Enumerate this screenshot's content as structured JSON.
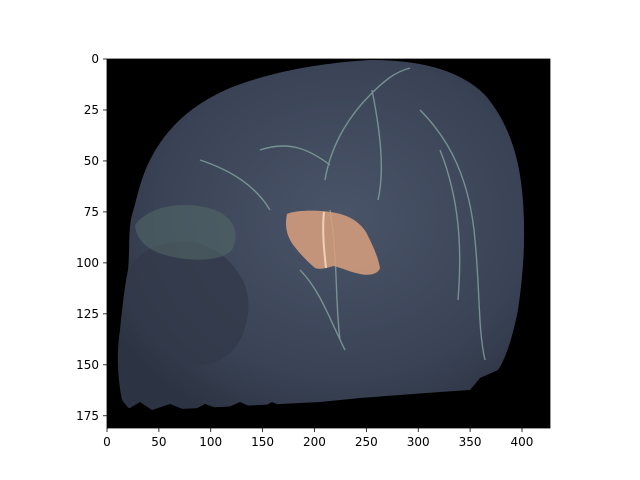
{
  "figure": {
    "type": "image-plot",
    "image_description_colors": {
      "background": "#000000",
      "head_tissue": "#3c4658",
      "vessel_highlight": "#8fb0a8",
      "overlay_region": "#d9a07e"
    },
    "x_axis": {
      "range": [
        0,
        427
      ],
      "ticks": [
        "0",
        "50",
        "100",
        "150",
        "200",
        "250",
        "300",
        "350",
        "400"
      ],
      "tick_values": [
        0,
        50,
        100,
        150,
        200,
        250,
        300,
        350,
        400
      ]
    },
    "y_axis": {
      "range": [
        0,
        181
      ],
      "inverted": true,
      "ticks": [
        "0",
        "25",
        "50",
        "75",
        "100",
        "125",
        "150",
        "175"
      ],
      "tick_values": [
        0,
        25,
        50,
        75,
        100,
        125,
        150,
        175
      ]
    }
  }
}
